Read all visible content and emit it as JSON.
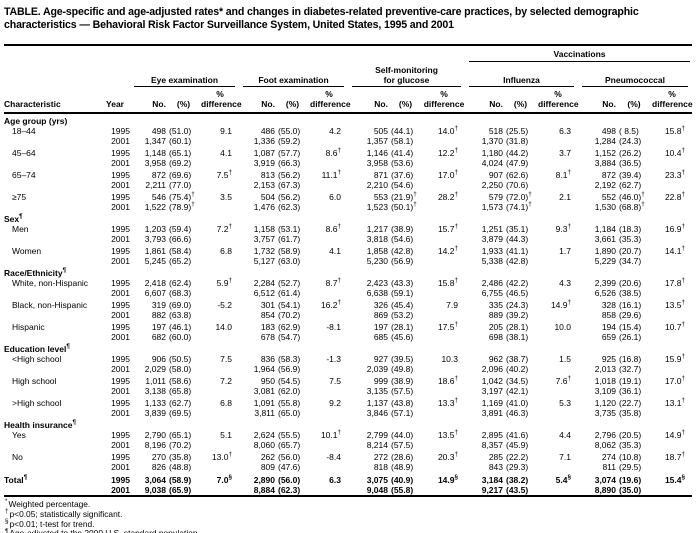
{
  "title": "TABLE. Age-specific and age-adjusted rates* and changes in diabetes-related preventive-care practices, by selected demographic characteristics — Behavioral Risk Factor Surveillance System, United States, 1995 and 2001",
  "years": [
    "1995",
    "2001"
  ],
  "header": {
    "characteristic": "Characteristic",
    "year": "Year",
    "vaccinations": "Vaccinations",
    "groups": [
      {
        "name": "eye-examination",
        "lines": [
          "Eye examination"
        ]
      },
      {
        "name": "foot-examination",
        "lines": [
          "Foot examination"
        ]
      },
      {
        "name": "self-monitoring-for-glucose",
        "lines": [
          "Self-monitoring",
          "for glucose"
        ]
      },
      {
        "name": "influenza",
        "lines": [
          "Influenza"
        ]
      },
      {
        "name": "pneumococcal",
        "lines": [
          "Pneumococcal"
        ]
      }
    ],
    "subcols": {
      "no": "No.",
      "pct": "(%)",
      "pct_top": "%",
      "diff": "difference"
    }
  },
  "sections": [
    {
      "label": "Age group (yrs)",
      "rows": [
        {
          "label": "18–44",
          "y1995": [
            "498",
            "(51.0)",
            "9.1",
            "486",
            "(55.0)",
            "4.2",
            "505",
            "(44.1)",
            "14.0†",
            "518",
            "(25.5)",
            "6.3",
            "498",
            "( 8.5)",
            "15.8†"
          ],
          "y2001": [
            "1,347",
            "(60.1)",
            "",
            "1,336",
            "(59.2)",
            "",
            "1,357",
            "(58.1)",
            "",
            "1,370",
            "(31.8)",
            "",
            "1,284",
            "(24.3)",
            ""
          ]
        },
        {
          "label": "45–64",
          "y1995": [
            "1,148",
            "(65.1)",
            "4.1",
            "1,087",
            "(57.7)",
            "8.6†",
            "1,146",
            "(41.4)",
            "12.2†",
            "1,180",
            "(44.2)",
            "3.7",
            "1,152",
            "(26.2)",
            "10.4†"
          ],
          "y2001": [
            "3,958",
            "(69.2)",
            "",
            "3,919",
            "(66.3)",
            "",
            "3,958",
            "(53.6)",
            "",
            "4,024",
            "(47.9)",
            "",
            "3,884",
            "(36.5)",
            ""
          ]
        },
        {
          "label": "65–74",
          "y1995": [
            "872",
            "(69.6)",
            "7.5†",
            "813",
            "(56.2)",
            "11.1†",
            "871",
            "(37.6)",
            "17.0†",
            "907",
            "(62.6)",
            "8.1†",
            "872",
            "(39.4)",
            "23.3†"
          ],
          "y2001": [
            "2,211",
            "(77.0)",
            "",
            "2,153",
            "(67.3)",
            "",
            "2,210",
            "(54.6)",
            "",
            "2,250",
            "(70.6)",
            "",
            "2,192",
            "(62.7)",
            ""
          ]
        },
        {
          "label": "≥75",
          "y1995": [
            "546",
            "(75.4)†",
            "3.5",
            "504",
            "(56.2)",
            "6.0",
            "553",
            "(21.9)†",
            "28.2†",
            "579",
            "(72.0)†",
            "2.1",
            "552",
            "(46.0)†",
            "22.8†"
          ],
          "y2001": [
            "1,522",
            "(78.9)†",
            "",
            "1,476",
            "(62.3)",
            "",
            "1,523",
            "(50.1)†",
            "",
            "1,573",
            "(74.1)†",
            "",
            "1,530",
            "(68.8)†",
            ""
          ]
        }
      ]
    },
    {
      "label": "Sex¶",
      "rows": [
        {
          "label": "Men",
          "y1995": [
            "1,203",
            "(59.4)",
            "7.2†",
            "1,158",
            "(53.1)",
            "8.6†",
            "1,217",
            "(38.9)",
            "15.7†",
            "1,251",
            "(35.1)",
            "9.3†",
            "1,184",
            "(18.3)",
            "16.9†"
          ],
          "y2001": [
            "3,793",
            "(66.6)",
            "",
            "3,757",
            "(61.7)",
            "",
            "3,818",
            "(54.6)",
            "",
            "3,879",
            "(44.3)",
            "",
            "3,661",
            "(35.3)",
            ""
          ]
        },
        {
          "label": "Women",
          "y1995": [
            "1,861",
            "(58.4)",
            "6.8",
            "1,732",
            "(58.9)",
            "4.1",
            "1,858",
            "(42.8)",
            "14.2†",
            "1,933",
            "(41.1)",
            "1.7",
            "1,890",
            "(20.7)",
            "14.1†"
          ],
          "y2001": [
            "5,245",
            "(65.2)",
            "",
            "5,127",
            "(63.0)",
            "",
            "5,230",
            "(56.9)",
            "",
            "5,338",
            "(42.8)",
            "",
            "5,229",
            "(34.7)",
            ""
          ]
        }
      ]
    },
    {
      "label": "Race/Ethnicity¶",
      "rows": [
        {
          "label": "White, non-Hispanic",
          "y1995": [
            "2,418",
            "(62.4)",
            "5.9†",
            "2,284",
            "(52.7)",
            "8.7†",
            "2,423",
            "(43.3)",
            "15.8†",
            "2,486",
            "(42.2)",
            "4.3",
            "2,399",
            "(20.6)",
            "17.8†"
          ],
          "y2001": [
            "6,607",
            "(68.3)",
            "",
            "6,512",
            "(61.4)",
            "",
            "6,638",
            "(59.1)",
            "",
            "6,755",
            "(46.5)",
            "",
            "6,526",
            "(38.5)",
            ""
          ]
        },
        {
          "label": "Black, non-Hispanic",
          "y1995": [
            "319",
            "(69.0)",
            "-5.2",
            "301",
            "(54.1)",
            "16.2†",
            "326",
            "(45.4)",
            "7.9",
            "335",
            "(24.3)",
            "14.9†",
            "328",
            "(16.1)",
            "13.5†"
          ],
          "y2001": [
            "882",
            "(63.8)",
            "",
            "854",
            "(70.2)",
            "",
            "869",
            "(53.2)",
            "",
            "889",
            "(39.2)",
            "",
            "858",
            "(29.6)",
            ""
          ]
        },
        {
          "label": "Hispanic",
          "y1995": [
            "197",
            "(46.1)",
            "14.0",
            "183",
            "(62.9)",
            "-8.1",
            "197",
            "(28.1)",
            "17.5†",
            "205",
            "(28.1)",
            "10.0",
            "194",
            "(15.4)",
            "10.7†"
          ],
          "y2001": [
            "682",
            "(60.0)",
            "",
            "678",
            "(54.7)",
            "",
            "685",
            "(45.6)",
            "",
            "698",
            "(38.1)",
            "",
            "659",
            "(26.1)",
            ""
          ]
        }
      ]
    },
    {
      "label": "Education level¶",
      "rows": [
        {
          "label": "<High school",
          "y1995": [
            "906",
            "(50.5)",
            "7.5",
            "836",
            "(58.3)",
            "-1.3",
            "927",
            "(39.5)",
            "10.3",
            "962",
            "(38.7)",
            "1.5",
            "925",
            "(16.8)",
            "15.9†"
          ],
          "y2001": [
            "2,029",
            "(58.0)",
            "",
            "1,964",
            "(56.9)",
            "",
            "2,039",
            "(49.8)",
            "",
            "2,096",
            "(40.2)",
            "",
            "2,013",
            "(32.7)",
            ""
          ]
        },
        {
          "label": "High school",
          "y1995": [
            "1,011",
            "(58.6)",
            "7.2",
            "950",
            "(54.5)",
            "7.5",
            "999",
            "(38.9)",
            "18.6†",
            "1,042",
            "(34.5)",
            "7.6†",
            "1,018",
            "(19.1)",
            "17.0†"
          ],
          "y2001": [
            "3,138",
            "(65.8)",
            "",
            "3,081",
            "(62.0)",
            "",
            "3,135",
            "(57.5)",
            "",
            "3,197",
            "(42.1)",
            "",
            "3,109",
            "(36.1)",
            ""
          ]
        },
        {
          "label": ">High school",
          "y1995": [
            "1,133",
            "(62.7)",
            "6.8",
            "1,091",
            "(55.8)",
            "9.2",
            "1,137",
            "(43.8)",
            "13.3†",
            "1,169",
            "(41.0)",
            "5.3",
            "1,120",
            "(22.7)",
            "13.1†"
          ],
          "y2001": [
            "3,839",
            "(69.5)",
            "",
            "3,811",
            "(65.0)",
            "",
            "3,846",
            "(57.1)",
            "",
            "3,891",
            "(46.3)",
            "",
            "3,735",
            "(35.8)",
            ""
          ]
        }
      ]
    },
    {
      "label": "Health insurance¶",
      "rows": [
        {
          "label": "Yes",
          "y1995": [
            "2,790",
            "(65.1)",
            "5.1",
            "2,624",
            "(55.5)",
            "10.1†",
            "2,799",
            "(44.0)",
            "13.5†",
            "2,895",
            "(41.6)",
            "4.4",
            "2,796",
            "(20.5)",
            "14.9†"
          ],
          "y2001": [
            "8,196",
            "(70.2)",
            "",
            "8,060",
            "(65.7)",
            "",
            "8,214",
            "(57.5)",
            "",
            "8,357",
            "(45.9)",
            "",
            "8,062",
            "(35.3)",
            ""
          ]
        },
        {
          "label": "No",
          "y1995": [
            "270",
            "(35.8)",
            "13.0†",
            "262",
            "(56.0)",
            "-8.4",
            "272",
            "(28.6)",
            "20.3†",
            "285",
            "(22.2)",
            "7.1",
            "274",
            "(10.8)",
            "18.7†"
          ],
          "y2001": [
            "826",
            "(48.8)",
            "",
            "809",
            "(47.6)",
            "",
            "818",
            "(48.9)",
            "",
            "843",
            "(29.3)",
            "",
            "811",
            "(29.5)",
            ""
          ]
        }
      ]
    }
  ],
  "total": {
    "label": "Total¶",
    "y1995": [
      "3,064",
      "(58.9)",
      "7.0§",
      "2,890",
      "(56.0)",
      "6.3",
      "3,075",
      "(40.9)",
      "14.9§",
      "3,184",
      "(38.2)",
      "5.4§",
      "3,074",
      "(19.6)",
      "15.4§"
    ],
    "y2001": [
      "9,038",
      "(65.9)",
      "",
      "8,884",
      "(62.3)",
      "",
      "9,048",
      "(55.8)",
      "",
      "9,217",
      "(43.5)",
      "",
      "8,890",
      "(35.0)",
      ""
    ]
  },
  "footnotes": [
    {
      "marker": "*",
      "text": "Weighted percentage."
    },
    {
      "marker": "†",
      "text": "p<0.05; statistically significant."
    },
    {
      "marker": "§",
      "text": "p<0.01; t-test for trend."
    },
    {
      "marker": "¶",
      "text": "Age-adjusted to the 2000 U.S. standard population."
    }
  ]
}
